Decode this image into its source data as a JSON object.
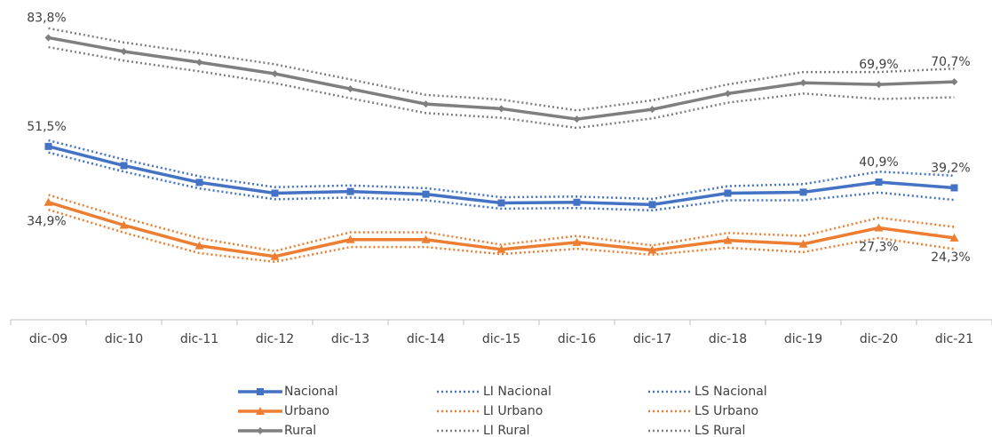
{
  "chart_data": {
    "type": "line",
    "categories": [
      "dic-09",
      "dic-10",
      "dic-11",
      "dic-12",
      "dic-13",
      "dic-14",
      "dic-15",
      "dic-16",
      "dic-17",
      "dic-18",
      "dic-19",
      "dic-20",
      "dic-21"
    ],
    "ylim": [
      0,
      95
    ],
    "series": [
      {
        "name": "Nacional",
        "color": "#4472c4",
        "dash": "solid",
        "marker": "square",
        "values": [
          51.5,
          45.8,
          40.8,
          37.6,
          38.1,
          37.3,
          34.7,
          34.9,
          34.2,
          37.6,
          37.9,
          40.9,
          39.2
        ],
        "value_labels": [
          "51,5%",
          null,
          null,
          null,
          null,
          null,
          null,
          null,
          null,
          null,
          null,
          "40,9%",
          "39,2%"
        ]
      },
      {
        "name": "LI Nacional",
        "color": "#4472c4",
        "dash": "dotted",
        "values": [
          49.7,
          44.0,
          39.0,
          35.8,
          36.3,
          35.5,
          33.0,
          33.2,
          32.5,
          35.5,
          35.5,
          37.8,
          35.6
        ]
      },
      {
        "name": "LS Nacional",
        "color": "#4472c4",
        "dash": "dotted",
        "values": [
          53.3,
          47.6,
          42.6,
          39.4,
          39.9,
          39.1,
          36.4,
          36.6,
          35.9,
          39.7,
          40.3,
          44.0,
          42.8
        ]
      },
      {
        "name": "Urbano",
        "color": "#ed7d31",
        "dash": "solid",
        "marker": "triangle",
        "values": [
          34.9,
          28.1,
          22.0,
          18.8,
          23.8,
          23.8,
          20.9,
          23.0,
          20.7,
          23.6,
          22.5,
          27.3,
          24.3
        ],
        "value_labels": [
          "34,9%",
          null,
          null,
          null,
          null,
          null,
          null,
          null,
          null,
          null,
          null,
          "27,3%",
          "24,3%"
        ]
      },
      {
        "name": "LI Urbano",
        "color": "#ed7d31",
        "dash": "dotted",
        "values": [
          32.7,
          25.9,
          19.8,
          17.2,
          21.6,
          21.6,
          19.5,
          21.1,
          19.3,
          21.4,
          20.1,
          24.3,
          21.0
        ]
      },
      {
        "name": "LS Urbano",
        "color": "#ed7d31",
        "dash": "dotted",
        "values": [
          37.1,
          30.3,
          24.2,
          20.4,
          26.0,
          26.0,
          22.3,
          24.9,
          22.1,
          25.8,
          24.9,
          30.3,
          27.6
        ]
      },
      {
        "name": "Rural",
        "color": "#7f7f7f",
        "dash": "solid",
        "marker": "diamond",
        "values": [
          83.8,
          79.7,
          76.5,
          73.1,
          68.6,
          64.1,
          62.7,
          59.6,
          62.5,
          67.2,
          70.4,
          69.9,
          70.7
        ],
        "value_labels": [
          "83,8%",
          null,
          null,
          null,
          null,
          null,
          null,
          null,
          null,
          null,
          null,
          "69,9%",
          "70,7%"
        ]
      },
      {
        "name": "LI Rural",
        "color": "#7f7f7f",
        "dash": "dotted",
        "values": [
          81.0,
          77.0,
          73.8,
          70.3,
          65.8,
          61.4,
          60.0,
          57.0,
          59.8,
          64.5,
          67.2,
          65.6,
          66.1
        ]
      },
      {
        "name": "LS Rural",
        "color": "#7f7f7f",
        "dash": "dotted",
        "values": [
          86.6,
          82.4,
          79.2,
          75.9,
          71.4,
          66.8,
          65.4,
          62.2,
          65.2,
          69.9,
          73.6,
          73.6,
          74.6
        ]
      }
    ]
  }
}
